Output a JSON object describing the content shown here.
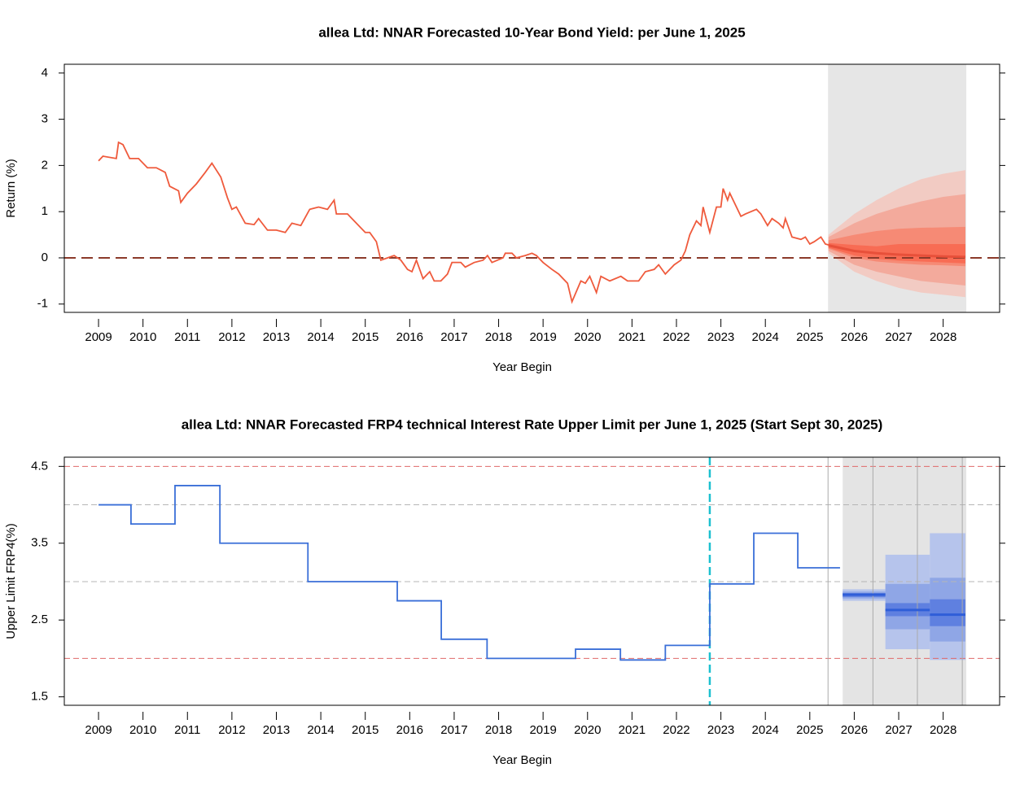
{
  "chart_data": [
    {
      "type": "line",
      "title": "allea Ltd: NNAR Forecasted 10-Year Bond Yield: per June 1, 2025",
      "x_label": "Year Begin",
      "y_label": "Return (%)",
      "xlim": [
        2008.23,
        2029.27
      ],
      "ylim": [
        -1.18,
        4.19
      ],
      "xticks": [
        2009,
        2010,
        2011,
        2012,
        2013,
        2014,
        2015,
        2016,
        2017,
        2018,
        2019,
        2020,
        2021,
        2022,
        2023,
        2024,
        2025,
        2026,
        2027,
        2028
      ],
      "yticks": [
        -1,
        0,
        1,
        2,
        3,
        4
      ],
      "shade": [
        2025.41,
        2028.52
      ],
      "shade_color": "#e6e6e6",
      "hlines": [
        {
          "value": 0,
          "color": "#8b3a2a",
          "dashed": true
        }
      ],
      "vlines": [],
      "series": [
        {
          "color": "#ef5a3c",
          "x": [
            2009.0,
            2009.1,
            2009.4,
            2009.45,
            2009.55,
            2009.7,
            2009.9,
            2010.1,
            2010.3,
            2010.5,
            2010.6,
            2010.8,
            2010.85,
            2011.0,
            2011.2,
            2011.4,
            2011.55,
            2011.75,
            2011.9,
            2012.0,
            2012.1,
            2012.3,
            2012.5,
            2012.6,
            2012.8,
            2013.0,
            2013.2,
            2013.35,
            2013.55,
            2013.75,
            2013.95,
            2014.15,
            2014.3,
            2014.35,
            2014.6,
            2014.8,
            2015.0,
            2015.1,
            2015.25,
            2015.35,
            2015.5,
            2015.65,
            2015.8,
            2015.95,
            2016.05,
            2016.15,
            2016.3,
            2016.45,
            2016.55,
            2016.7,
            2016.85,
            2016.95,
            2017.15,
            2017.25,
            2017.45,
            2017.65,
            2017.75,
            2017.85,
            2018.1,
            2018.15,
            2018.3,
            2018.4,
            2018.6,
            2018.75,
            2018.85,
            2019.0,
            2019.2,
            2019.35,
            2019.55,
            2019.65,
            2019.85,
            2019.95,
            2020.05,
            2020.2,
            2020.3,
            2020.5,
            2020.75,
            2020.9,
            2021.15,
            2021.3,
            2021.5,
            2021.6,
            2021.75,
            2021.95,
            2022.1,
            2022.2,
            2022.3,
            2022.45,
            2022.55,
            2022.6,
            2022.75,
            2022.9,
            2023.0,
            2023.05,
            2023.15,
            2023.2,
            2023.45,
            2023.55,
            2023.8,
            2023.9,
            2024.05,
            2024.15,
            2024.3,
            2024.4,
            2024.45,
            2024.6,
            2024.8,
            2024.9,
            2025.0,
            2025.1,
            2025.25,
            2025.35,
            2025.42
          ],
          "values": [
            2.1,
            2.2,
            2.15,
            2.5,
            2.45,
            2.15,
            2.15,
            1.95,
            1.95,
            1.85,
            1.55,
            1.45,
            1.2,
            1.4,
            1.6,
            1.85,
            2.05,
            1.75,
            1.3,
            1.05,
            1.1,
            0.75,
            0.72,
            0.85,
            0.6,
            0.6,
            0.55,
            0.75,
            0.7,
            1.05,
            1.1,
            1.05,
            1.25,
            0.95,
            0.95,
            0.75,
            0.55,
            0.55,
            0.35,
            -0.05,
            0.0,
            0.05,
            -0.05,
            -0.25,
            -0.3,
            -0.05,
            -0.45,
            -0.3,
            -0.5,
            -0.5,
            -0.35,
            -0.1,
            -0.1,
            -0.2,
            -0.1,
            -0.05,
            0.05,
            -0.1,
            0.0,
            0.1,
            0.1,
            0.0,
            0.05,
            0.1,
            0.05,
            -0.1,
            -0.25,
            -0.35,
            -0.55,
            -0.95,
            -0.5,
            -0.55,
            -0.4,
            -0.75,
            -0.4,
            -0.5,
            -0.4,
            -0.5,
            -0.5,
            -0.3,
            -0.25,
            -0.15,
            -0.35,
            -0.15,
            -0.05,
            0.15,
            0.5,
            0.8,
            0.7,
            1.1,
            0.55,
            1.1,
            1.1,
            1.5,
            1.25,
            1.4,
            0.9,
            0.95,
            1.05,
            0.95,
            0.7,
            0.85,
            0.75,
            0.65,
            0.85,
            0.45,
            0.4,
            0.45,
            0.3,
            0.35,
            0.45,
            0.3,
            0.28
          ]
        }
      ],
      "forecast": {
        "x": [
          2025.42,
          2026.0,
          2026.5,
          2027.0,
          2027.5,
          2028.0,
          2028.5
        ],
        "color": "#e8503a",
        "values": [
          0.27,
          0.15,
          0.1,
          0.07,
          0.05,
          0.03,
          0.02
        ],
        "bands": [
          {
            "color": "#f2cbc3",
            "lower": [
              0.1,
              -0.3,
              -0.5,
              -0.65,
              -0.75,
              -0.8,
              -0.85
            ],
            "upper": [
              0.5,
              0.95,
              1.25,
              1.5,
              1.7,
              1.82,
              1.9
            ]
          },
          {
            "color": "#f3aa9c",
            "lower": [
              0.15,
              -0.15,
              -0.3,
              -0.4,
              -0.5,
              -0.55,
              -0.6
            ],
            "upper": [
              0.45,
              0.75,
              0.95,
              1.1,
              1.22,
              1.32,
              1.38
            ]
          },
          {
            "color": "#f68a75",
            "lower": [
              0.2,
              0.0,
              -0.08,
              -0.12,
              -0.15,
              -0.16,
              -0.18
            ],
            "upper": [
              0.38,
              0.5,
              0.58,
              0.63,
              0.65,
              0.66,
              0.67
            ]
          },
          {
            "color": "#f86c54",
            "lower": [
              0.22,
              0.05,
              -0.02,
              -0.06,
              -0.08,
              -0.1,
              -0.12
            ],
            "upper": [
              0.32,
              0.28,
              0.25,
              0.3,
              0.3,
              0.3,
              0.3
            ]
          }
        ]
      }
    },
    {
      "type": "step",
      "title": "allea Ltd: NNAR Forecasted FRP4 technical Interest Rate Upper Limit per June 1, 2025 (Start Sept 30, 2025)",
      "x_label": "Year Begin",
      "y_label": "Upper Limit FRP4(%)",
      "xlim": [
        2008.23,
        2029.27
      ],
      "ylim": [
        1.39,
        4.62
      ],
      "xticks": [
        2009,
        2010,
        2011,
        2012,
        2013,
        2014,
        2015,
        2016,
        2017,
        2018,
        2019,
        2020,
        2021,
        2022,
        2023,
        2024,
        2025,
        2026,
        2027,
        2028
      ],
      "yticks": [
        1.5,
        2.5,
        3.5,
        4.5
      ],
      "shade": [
        2025.74,
        2028.52
      ],
      "shade_color": "#e4e4e4",
      "hlines": [
        {
          "value": 4.5,
          "color": "#e06a6a",
          "dashed": true
        },
        {
          "value": 4,
          "color": "#b5b5b5",
          "dashed": true
        },
        {
          "value": 3,
          "color": "#b5b5b5",
          "dashed": true
        },
        {
          "value": 2,
          "color": "#e06a6a",
          "dashed": true
        }
      ],
      "vlines": [
        {
          "value": 2022.75,
          "color": "#1cc0d0",
          "dashed": true
        },
        {
          "value": 2025.41,
          "color": "#aaaaaa",
          "dashed": false
        },
        {
          "value": 2026.42,
          "color": "#aaaaaa",
          "dashed": false
        },
        {
          "value": 2027.42,
          "color": "#aaaaaa",
          "dashed": false
        },
        {
          "value": 2028.43,
          "color": "#aaaaaa",
          "dashed": false
        }
      ],
      "series": [
        {
          "color": "#3a6fd8",
          "x": [
            2009.0,
            2009.73,
            2010.72,
            2011.73,
            2013.71,
            2015.72,
            2016.71,
            2017.74,
            2019.73,
            2020.74,
            2021.75,
            2022.75,
            2023.74,
            2024.73,
            2025.68
          ],
          "values": [
            4.0,
            3.75,
            4.25,
            3.5,
            3.0,
            2.75,
            2.25,
            2.0,
            2.12,
            1.98,
            2.17,
            2.97,
            3.63,
            3.18,
            3.18
          ]
        }
      ],
      "forecast": {
        "x": [
          2025.74,
          2026.7,
          2027.7,
          2028.5
        ],
        "color": "#2f5ed8",
        "values": [
          2.83,
          2.63,
          2.57
        ],
        "bands": [
          {
            "color": "#b6c4ec",
            "lower": [
              2.75,
              2.12,
              1.98
            ],
            "upper": [
              2.9,
              3.35,
              3.63
            ]
          },
          {
            "color": "#8fa6e6",
            "lower": [
              2.78,
              2.38,
              2.22
            ],
            "upper": [
              2.87,
              2.97,
              3.05
            ]
          },
          {
            "color": "#5f80e0",
            "lower": [
              2.8,
              2.55,
              2.42
            ],
            "upper": [
              2.85,
              2.72,
              2.77
            ]
          }
        ]
      }
    }
  ]
}
